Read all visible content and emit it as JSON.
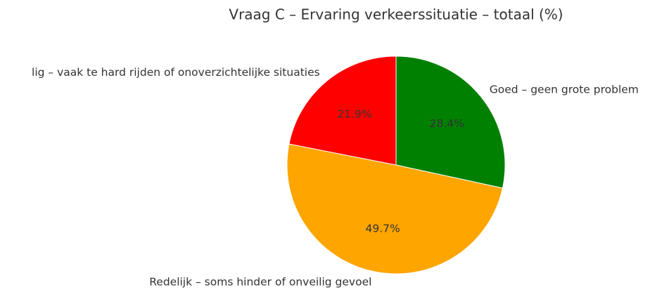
{
  "chart_data": {
    "type": "pie",
    "title": "Vraag C – Ervaring verkeerssituatie – totaal (%)",
    "categories": [
      "Goed – geen grote problem",
      "Redelijk – soms hinder of onveilig gevoel",
      "lig – vaak te hard rijden of onoverzichtelijke situaties"
    ],
    "values": [
      28.4,
      49.7,
      21.9
    ],
    "value_labels": [
      "28.4%",
      "49.7%",
      "21.9%"
    ],
    "colors": [
      "#008000",
      "#ffa500",
      "#ff0000"
    ]
  }
}
